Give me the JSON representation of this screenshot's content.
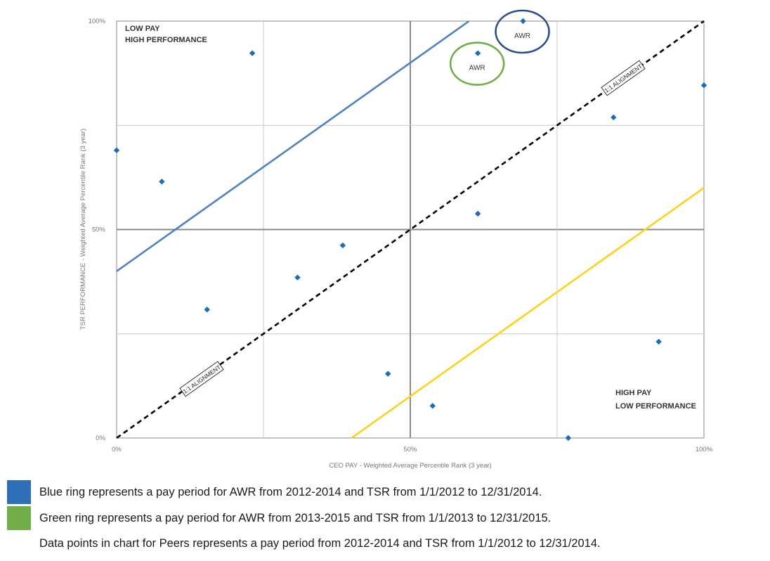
{
  "chart_data": {
    "type": "scatter",
    "title": "",
    "xlabel": "CEO PAY - Weighted Average Percentile Rank (3 year)",
    "ylabel": "TSR PERFORMANCE - Weighted Average Percentile Rank (3 year)",
    "xlim": [
      0,
      100
    ],
    "ylim": [
      0,
      100
    ],
    "x_ticks": [
      {
        "value": 0,
        "label": "0%"
      },
      {
        "value": 50,
        "label": "50%"
      },
      {
        "value": 100,
        "label": "100%"
      }
    ],
    "y_ticks": [
      {
        "value": 0,
        "label": "0%"
      },
      {
        "value": 50,
        "label": "50%"
      },
      {
        "value": 100,
        "label": "100%"
      }
    ],
    "grid": true,
    "points": [
      {
        "x": 0,
        "y": 69
      },
      {
        "x": 7.7,
        "y": 61.5
      },
      {
        "x": 15.4,
        "y": 30.8
      },
      {
        "x": 23.1,
        "y": 92.3
      },
      {
        "x": 30.8,
        "y": 38.5
      },
      {
        "x": 38.5,
        "y": 46.2
      },
      {
        "x": 46.2,
        "y": 15.4
      },
      {
        "x": 53.8,
        "y": 7.7
      },
      {
        "x": 61.5,
        "y": 53.8
      },
      {
        "x": 61.5,
        "y": 92.3
      },
      {
        "x": 69.2,
        "y": 100
      },
      {
        "x": 76.9,
        "y": 0
      },
      {
        "x": 84.6,
        "y": 76.9
      },
      {
        "x": 92.3,
        "y": 23.1
      },
      {
        "x": 100,
        "y": 84.6
      }
    ],
    "reference_lines": [
      {
        "name": "1:1 ALIGNMENT",
        "from": [
          0,
          0
        ],
        "to": [
          100,
          100
        ],
        "color": "#000000",
        "dashed": true
      },
      {
        "name": "upper band",
        "from": [
          0,
          40
        ],
        "to": [
          60,
          100
        ],
        "color": "#4f81bd",
        "dashed": false
      },
      {
        "name": "lower band",
        "from": [
          40,
          0
        ],
        "to": [
          100,
          60
        ],
        "color": "#ffd21a",
        "dashed": false
      }
    ],
    "alignment_label": "1:1 ALIGNMENT",
    "highlights": [
      {
        "label": "AWR",
        "x": 69.2,
        "y": 100,
        "color": "#2e4c8e"
      },
      {
        "label": "AWR",
        "x": 61.5,
        "y": 92.3,
        "color": "#70ad47"
      }
    ],
    "quadrant_labels": {
      "top_left": [
        "LOW PAY",
        "HIGH PERFORMANCE"
      ],
      "bottom_right": [
        "HIGH PAY",
        "LOW PERFORMANCE"
      ]
    },
    "colors": {
      "points": "#1f6cb5",
      "grid_minor": "#c8c8c8",
      "grid_major": "#8a8a8a"
    }
  },
  "legend": {
    "items": [
      {
        "text": "Blue ring represents a pay period for AWR from 2012-2014 and TSR from 1/1/2012 to 12/31/2014.",
        "color": "#2e6fb7"
      },
      {
        "text": "Green ring represents a pay period for AWR from 2013-2015 and TSR from 1/1/2013 to 12/31/2015.",
        "color": "#70ad47"
      },
      {
        "text": "Data points in chart for Peers represents a pay period from 2012-2014 and TSR from 1/1/2012 to 12/31/2014.",
        "color": ""
      }
    ]
  }
}
